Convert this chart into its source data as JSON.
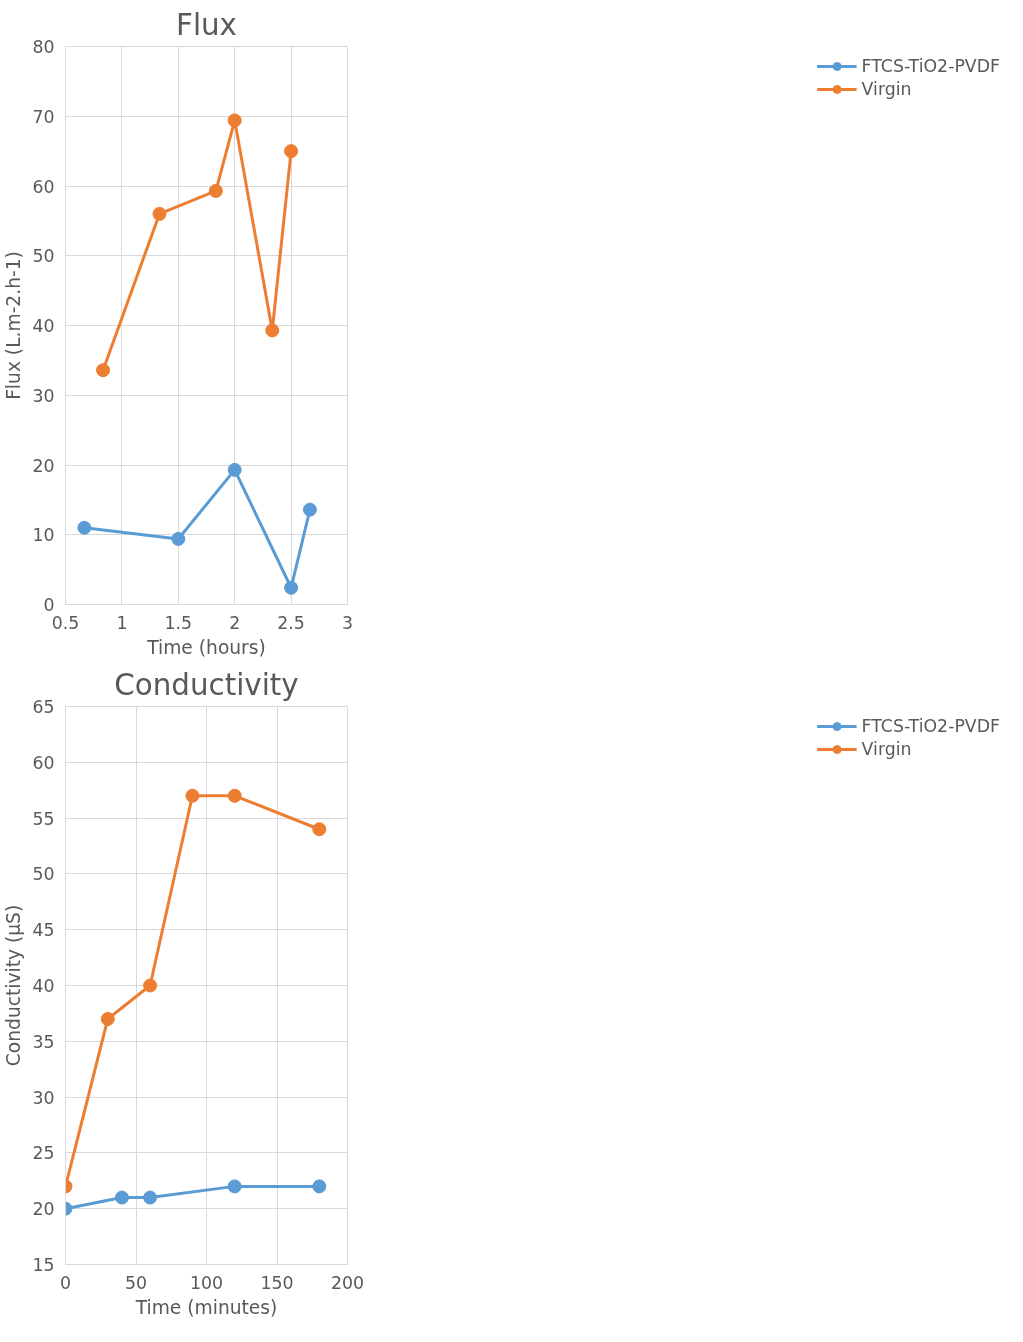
{
  "chart_data": [
    {
      "type": "line",
      "title": "Flux",
      "xlabel": "Time (hours)",
      "ylabel": "Flux (L.m-2.h-1)",
      "xlim": [
        0.5,
        3
      ],
      "xticks": [
        0.5,
        1,
        1.5,
        2,
        2.5,
        3
      ],
      "ylim": [
        0,
        80
      ],
      "yticks": [
        0,
        10,
        20,
        30,
        40,
        50,
        60,
        70,
        80
      ],
      "grid": true,
      "legend": "right",
      "marker": "circle",
      "series": [
        {
          "name": "FTCS-TiO2-PVDF",
          "color": "#5b9bd5",
          "x": [
            0.667,
            1.5,
            2,
            2.5,
            2.667
          ],
          "values": [
            11,
            9.4,
            19.3,
            2.4,
            13.6
          ]
        },
        {
          "name": "Virgin",
          "color": "#ed7d31",
          "x": [
            0.833,
            1.333,
            1.833,
            2,
            2.333,
            2.5
          ],
          "values": [
            33.6,
            56,
            59.3,
            69.4,
            39.3,
            65
          ]
        }
      ]
    },
    {
      "type": "line",
      "title": "Conductivity",
      "xlabel": "Time (minutes)",
      "ylabel": "Conductivity (µS)",
      "xlim": [
        0,
        200
      ],
      "xticks": [
        0,
        50,
        100,
        150,
        200
      ],
      "ylim": [
        15,
        65
      ],
      "yticks": [
        15,
        20,
        25,
        30,
        35,
        40,
        45,
        50,
        55,
        60,
        65
      ],
      "grid": true,
      "legend": "right",
      "marker": "circle",
      "series": [
        {
          "name": "FTCS-TiO2-PVDF",
          "color": "#5b9bd5",
          "x": [
            0,
            40,
            60,
            120,
            180
          ],
          "values": [
            20,
            21,
            21,
            22,
            22
          ]
        },
        {
          "name": "Virgin",
          "color": "#ed7d31",
          "x": [
            0,
            30,
            60,
            90,
            120,
            180
          ],
          "values": [
            22,
            37,
            40,
            57,
            57,
            54
          ]
        }
      ]
    }
  ]
}
